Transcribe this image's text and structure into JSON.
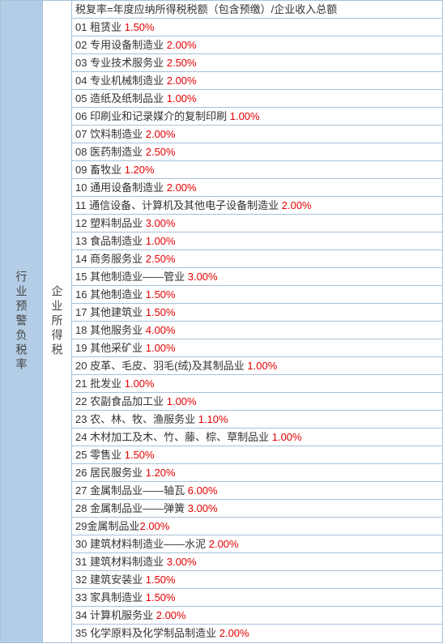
{
  "leftColumn": "行业预警负税率",
  "midColumn": "企业所得税",
  "headerRow": "税复率=年度应纳所得税税额（包含预缴）/企业收入总额",
  "rows": [
    {
      "num": "01",
      "label": "租赁业",
      "rate": "1.50%"
    },
    {
      "num": "02",
      "label": "专用设备制造业",
      "rate": "2.00%"
    },
    {
      "num": "03",
      "label": "专业技术服务业",
      "rate": "2.50%"
    },
    {
      "num": "04",
      "label": "专业机械制造业",
      "rate": "2.00%"
    },
    {
      "num": "05",
      "label": "造纸及纸制品业",
      "rate": "1.00%"
    },
    {
      "num": "06",
      "label": "印刷业和记录媒介的复制印刷",
      "rate": "1.00%"
    },
    {
      "num": "07",
      "label": "饮料制造业",
      "rate": "2.00%"
    },
    {
      "num": "08",
      "label": "医药制造业",
      "rate": "2.50%"
    },
    {
      "num": "09",
      "label": "畜牧业",
      "rate": "1.20%"
    },
    {
      "num": "10",
      "label": "通用设备制造业",
      "rate": "2.00%"
    },
    {
      "num": "11",
      "label": "通信设备、计算机及其他电子设备制造业",
      "rate": "2.00%"
    },
    {
      "num": "12",
      "label": "塑料制品业",
      "rate": "3.00%"
    },
    {
      "num": "13",
      "label": "食品制造业",
      "rate": "1.00%"
    },
    {
      "num": "14",
      "label": "商务服务业",
      "rate": "2.50%"
    },
    {
      "num": "15",
      "label": "其他制造业——管业",
      "rate": "3.00%"
    },
    {
      "num": "16",
      "label": "其他制造业",
      "rate": "1.50%"
    },
    {
      "num": "17",
      "label": "其他建筑业",
      "rate": "1.50%"
    },
    {
      "num": "18",
      "label": "其他服务业",
      "rate": "4.00%"
    },
    {
      "num": "19",
      "label": "其他采矿业",
      "rate": "1.00%"
    },
    {
      "num": "20",
      "label": "皮革、毛皮、羽毛(绒)及其制品业",
      "rate": "1.00%"
    },
    {
      "num": "21",
      "label": "批发业",
      "rate": "1.00%"
    },
    {
      "num": "22",
      "label": "农副食品加工业",
      "rate": "1.00%"
    },
    {
      "num": "23",
      "label": "农、林、牧、渔服务业",
      "rate": "1.10%"
    },
    {
      "num": "24",
      "label": "木材加工及木、竹、藤、棕、草制品业",
      "rate": "1.00%"
    },
    {
      "num": "25",
      "label": "零售业",
      "rate": "1.50%"
    },
    {
      "num": "26",
      "label": "居民服务业",
      "rate": "1.20%"
    },
    {
      "num": "27",
      "label": "金属制品业——轴瓦",
      "rate": "6.00%"
    },
    {
      "num": "28",
      "label": "金属制品业——弹簧",
      "rate": "3.00%"
    },
    {
      "num": "29",
      "label": "金属制品业",
      "rate": "2.00%",
      "nospace": true
    },
    {
      "num": "30",
      "label": "建筑材料制造业——水泥",
      "rate": "2.00%"
    },
    {
      "num": "31",
      "label": "建筑材料制造业",
      "rate": "3.00%"
    },
    {
      "num": "32",
      "label": "建筑安装业",
      "rate": "1.50%"
    },
    {
      "num": "33",
      "label": "家具制造业",
      "rate": "1.50%"
    },
    {
      "num": "34",
      "label": "计算机服务业",
      "rate": "2.00%"
    },
    {
      "num": "35",
      "label": "化学原料及化学制品制造业",
      "rate": "2.00%"
    }
  ],
  "colors": {
    "leftBg": "#b4cde6",
    "border": "#a8c0d8",
    "rateColor": "#e60000",
    "textColor": "#333"
  }
}
